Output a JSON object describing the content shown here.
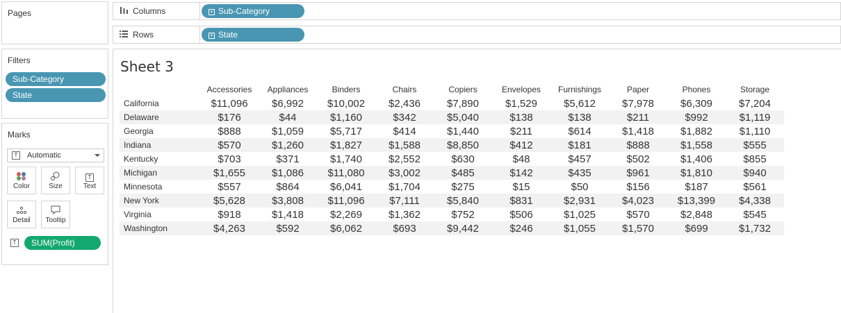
{
  "pages": {
    "title": "Pages"
  },
  "columns_shelf": {
    "label": "Columns",
    "pill": "Sub-Category"
  },
  "rows_shelf": {
    "label": "Rows",
    "pill": "State"
  },
  "filters": {
    "title": "Filters",
    "items": [
      "Sub-Category",
      "State"
    ]
  },
  "marks": {
    "title": "Marks",
    "type_select": "Automatic",
    "buttons": {
      "color": "Color",
      "size": "Size",
      "text": "Text",
      "detail": "Detail",
      "tooltip": "Tooltip"
    },
    "measure_pill": "SUM(Profit)"
  },
  "sheet": {
    "title": "Sheet 3",
    "columns": [
      "Accessories",
      "Appliances",
      "Binders",
      "Chairs",
      "Copiers",
      "Envelopes",
      "Furnishings",
      "Paper",
      "Phones",
      "Storage"
    ],
    "rows": [
      {
        "state": "California",
        "values": [
          "$11,096",
          "$6,992",
          "$10,002",
          "$2,436",
          "$7,890",
          "$1,529",
          "$5,612",
          "$7,978",
          "$6,309",
          "$7,204"
        ]
      },
      {
        "state": "Delaware",
        "values": [
          "$176",
          "$44",
          "$1,160",
          "$342",
          "$5,040",
          "$138",
          "$138",
          "$211",
          "$992",
          "$1,119"
        ]
      },
      {
        "state": "Georgia",
        "values": [
          "$888",
          "$1,059",
          "$5,717",
          "$414",
          "$1,440",
          "$211",
          "$614",
          "$1,418",
          "$1,882",
          "$1,110"
        ]
      },
      {
        "state": "Indiana",
        "values": [
          "$570",
          "$1,260",
          "$1,827",
          "$1,588",
          "$8,850",
          "$412",
          "$181",
          "$888",
          "$1,558",
          "$555"
        ]
      },
      {
        "state": "Kentucky",
        "values": [
          "$703",
          "$371",
          "$1,740",
          "$2,552",
          "$630",
          "$48",
          "$457",
          "$502",
          "$1,406",
          "$855"
        ]
      },
      {
        "state": "Michigan",
        "values": [
          "$1,655",
          "$1,086",
          "$11,080",
          "$3,002",
          "$485",
          "$142",
          "$435",
          "$961",
          "$1,810",
          "$940"
        ]
      },
      {
        "state": "Minnesota",
        "values": [
          "$557",
          "$864",
          "$6,041",
          "$1,704",
          "$275",
          "$15",
          "$50",
          "$156",
          "$187",
          "$561"
        ]
      },
      {
        "state": "New York",
        "values": [
          "$5,628",
          "$3,808",
          "$11,096",
          "$7,111",
          "$5,840",
          "$831",
          "$2,931",
          "$4,023",
          "$13,399",
          "$4,338"
        ]
      },
      {
        "state": "Virginia",
        "values": [
          "$918",
          "$1,418",
          "$2,269",
          "$1,362",
          "$752",
          "$506",
          "$1,025",
          "$570",
          "$2,848",
          "$545"
        ]
      },
      {
        "state": "Washington",
        "values": [
          "$4,263",
          "$592",
          "$6,062",
          "$693",
          "$9,442",
          "$246",
          "$1,055",
          "$1,570",
          "$699",
          "$1,732"
        ]
      }
    ]
  },
  "colors": {
    "dimension_pill": "#4996b2",
    "measure_pill": "#14a86f"
  },
  "icons": {
    "columns": "columns-icon",
    "rows": "rows-icon",
    "filter_pill": "plus-box-icon"
  }
}
